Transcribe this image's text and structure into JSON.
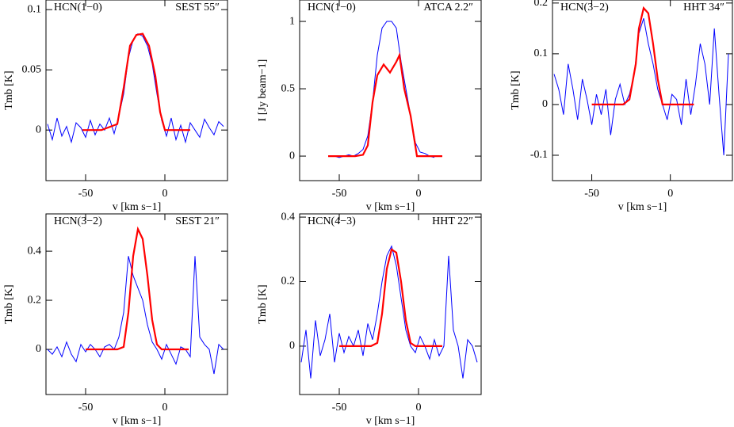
{
  "chart_data": [
    {
      "type": "line",
      "label_left": "HCN(1−0)",
      "label_right": "SEST 55″",
      "xlabel": "v [km s−1]",
      "ylabel": "Tmb [K]",
      "xlim": [
        -75,
        39.5
      ],
      "xticks": [
        -50,
        0
      ],
      "ylim": [
        -0.042,
        0.108
      ],
      "yticks": [
        0,
        0.05,
        0.1
      ],
      "series": [
        {
          "color": "#0000ff",
          "x": [
            -74,
            -71,
            -68,
            -65,
            -62,
            -59,
            -56,
            -53,
            -50,
            -47,
            -44,
            -41,
            -38,
            -35,
            -32,
            -29,
            -26,
            -23,
            -20,
            -17,
            -14,
            -11,
            -8,
            -5,
            -2,
            1,
            4,
            7,
            10,
            13,
            16,
            19,
            22,
            25,
            28,
            31,
            34,
            37
          ],
          "values": [
            0.005,
            -0.008,
            0.01,
            -0.005,
            0.003,
            -0.01,
            0.006,
            0.002,
            -0.006,
            0.008,
            -0.004,
            0.005,
            0.0,
            0.01,
            -0.003,
            0.012,
            0.03,
            0.06,
            0.075,
            0.08,
            0.078,
            0.07,
            0.055,
            0.03,
            0.008,
            -0.005,
            0.01,
            -0.008,
            0.004,
            -0.01,
            0.006,
            0.0,
            -0.006,
            0.009,
            0.002,
            -0.004,
            0.007,
            0.003
          ]
        },
        {
          "color": "#ff0000",
          "x": [
            -52,
            -40,
            -30,
            -26,
            -22,
            -18,
            -14,
            -10,
            -6,
            -3,
            0,
            5,
            16
          ],
          "values": [
            0,
            0,
            0.005,
            0.035,
            0.07,
            0.079,
            0.08,
            0.07,
            0.045,
            0.015,
            0,
            0,
            0
          ]
        }
      ]
    },
    {
      "type": "line",
      "label_left": "HCN(1−0)",
      "label_right": "ATCA 2.2″",
      "xlabel": "v [km s−1]",
      "ylabel": "I [Jy beam−1]",
      "xlim": [
        -75,
        39.5
      ],
      "xticks": [
        -50,
        0
      ],
      "ylim": [
        -0.182,
        1.159
      ],
      "yticks": [
        0,
        0.5,
        1
      ],
      "series": [
        {
          "color": "#0000ff",
          "x": [
            -56,
            -53,
            -50,
            -47,
            -44,
            -41,
            -38,
            -35,
            -32,
            -29,
            -26,
            -23,
            -20,
            -17,
            -14,
            -11,
            -8,
            -5,
            -2,
            1,
            4,
            7,
            10
          ],
          "values": [
            0,
            0,
            -0.01,
            0,
            0.01,
            0,
            0.02,
            0.05,
            0.15,
            0.4,
            0.75,
            0.95,
            1.0,
            1.0,
            0.95,
            0.7,
            0.5,
            0.3,
            0.1,
            0.03,
            0.02,
            0.0,
            -0.01
          ]
        },
        {
          "color": "#ff0000",
          "x": [
            -57,
            -40,
            -35,
            -32,
            -29,
            -26,
            -22,
            -18,
            -14,
            -12,
            -9,
            -5,
            -1,
            15
          ],
          "values": [
            0,
            0,
            0.01,
            0.08,
            0.4,
            0.6,
            0.68,
            0.62,
            0.7,
            0.75,
            0.5,
            0.3,
            0,
            0
          ]
        }
      ]
    },
    {
      "type": "line",
      "label_left": "HCN(3−2)",
      "label_right": "HHT 34″",
      "xlabel": "v [km s−1]",
      "ylabel": "Tmb [K]",
      "xlim": [
        -75,
        39.5
      ],
      "xticks": [
        -50,
        0
      ],
      "ylim": [
        -0.15,
        0.206
      ],
      "yticks": [
        -0.1,
        0,
        0.1,
        0.2
      ],
      "series": [
        {
          "color": "#0000ff",
          "x": [
            -74,
            -71,
            -68,
            -65,
            -62,
            -59,
            -56,
            -53,
            -50,
            -47,
            -44,
            -41,
            -38,
            -35,
            -32,
            -29,
            -26,
            -23,
            -20,
            -17,
            -14,
            -11,
            -8,
            -5,
            -2,
            1,
            4,
            7,
            10,
            13,
            16,
            19,
            22,
            25,
            28,
            31,
            34,
            37
          ],
          "values": [
            0.06,
            0.03,
            -0.02,
            0.08,
            0.03,
            -0.03,
            0.05,
            0.01,
            -0.04,
            0.02,
            -0.02,
            0.03,
            -0.06,
            0.01,
            0.04,
            0.0,
            0.02,
            0.06,
            0.14,
            0.17,
            0.12,
            0.08,
            0.03,
            0.0,
            -0.03,
            0.02,
            0.01,
            -0.04,
            0.05,
            -0.02,
            0.04,
            0.12,
            0.08,
            0.0,
            0.15,
            0.02,
            -0.1,
            0.1
          ]
        },
        {
          "color": "#ff0000",
          "x": [
            -50,
            -30,
            -26,
            -22,
            -20,
            -17,
            -14,
            -11,
            -8,
            -5,
            0,
            15
          ],
          "values": [
            0,
            0,
            0.01,
            0.08,
            0.15,
            0.19,
            0.18,
            0.12,
            0.05,
            0,
            0,
            0
          ]
        }
      ]
    },
    {
      "type": "line",
      "label_left": "HCN(3−2)",
      "label_right": "SEST 21″",
      "xlabel": "v [km s−1]",
      "ylabel": "Tmb [K]",
      "xlim": [
        -75,
        39.5
      ],
      "xticks": [
        -50,
        0
      ],
      "ylim": [
        -0.184,
        0.552
      ],
      "yticks": [
        0,
        0.2,
        0.4
      ],
      "series": [
        {
          "color": "#0000ff",
          "x": [
            -74,
            -71,
            -68,
            -65,
            -62,
            -59,
            -56,
            -53,
            -50,
            -47,
            -44,
            -41,
            -38,
            -35,
            -32,
            -29,
            -26,
            -23,
            -20,
            -17,
            -14,
            -11,
            -8,
            -5,
            -2,
            1,
            4,
            7,
            10,
            13,
            16,
            19,
            22,
            25,
            28,
            31,
            34,
            37
          ],
          "values": [
            0.0,
            -0.02,
            0.01,
            -0.03,
            0.03,
            -0.02,
            -0.05,
            0.02,
            -0.01,
            0.02,
            0.0,
            -0.03,
            0.01,
            0.02,
            0.0,
            0.05,
            0.15,
            0.38,
            0.3,
            0.25,
            0.2,
            0.1,
            0.03,
            0.0,
            -0.04,
            0.02,
            -0.02,
            -0.06,
            0.01,
            0.0,
            -0.03,
            0.38,
            0.05,
            0.02,
            0.0,
            -0.1,
            0.02,
            0.0
          ]
        },
        {
          "color": "#ff0000",
          "x": [
            -50,
            -30,
            -26,
            -23,
            -20,
            -17,
            -14,
            -11,
            -8,
            -5,
            -2,
            0,
            15
          ],
          "values": [
            0,
            0,
            0.01,
            0.15,
            0.38,
            0.49,
            0.45,
            0.3,
            0.12,
            0.02,
            0,
            0,
            0
          ]
        }
      ]
    },
    {
      "type": "line",
      "label_left": "HCN(4−3)",
      "label_right": "HHT 22″",
      "xlabel": "v [km s−1]",
      "ylabel": "Tmb [K]",
      "xlim": [
        -75,
        39.5
      ],
      "xticks": [
        -50,
        0
      ],
      "ylim": [
        -0.15,
        0.41
      ],
      "yticks": [
        0,
        0.2,
        0.4
      ],
      "series": [
        {
          "color": "#0000ff",
          "x": [
            -74,
            -71,
            -68,
            -65,
            -62,
            -59,
            -56,
            -53,
            -50,
            -47,
            -44,
            -41,
            -38,
            -35,
            -32,
            -29,
            -26,
            -23,
            -20,
            -17,
            -14,
            -11,
            -8,
            -5,
            -2,
            1,
            4,
            7,
            10,
            13,
            16,
            19,
            22,
            25,
            28,
            31,
            34,
            37
          ],
          "values": [
            -0.05,
            0.05,
            -0.1,
            0.08,
            -0.03,
            0.02,
            0.1,
            -0.05,
            0.04,
            -0.02,
            0.03,
            0.0,
            0.05,
            -0.03,
            0.07,
            0.02,
            0.1,
            0.2,
            0.28,
            0.31,
            0.25,
            0.15,
            0.05,
            0.0,
            -0.02,
            0.03,
            0.0,
            -0.04,
            0.02,
            -0.03,
            0.0,
            0.28,
            0.05,
            0.0,
            -0.1,
            0.02,
            0.0,
            -0.05
          ]
        },
        {
          "color": "#ff0000",
          "x": [
            -50,
            -30,
            -26,
            -23,
            -20,
            -17,
            -14,
            -11,
            -8,
            -5,
            -2,
            0,
            15
          ],
          "values": [
            0,
            0,
            0.01,
            0.1,
            0.24,
            0.3,
            0.29,
            0.2,
            0.08,
            0.01,
            0,
            0,
            0
          ]
        }
      ]
    }
  ]
}
